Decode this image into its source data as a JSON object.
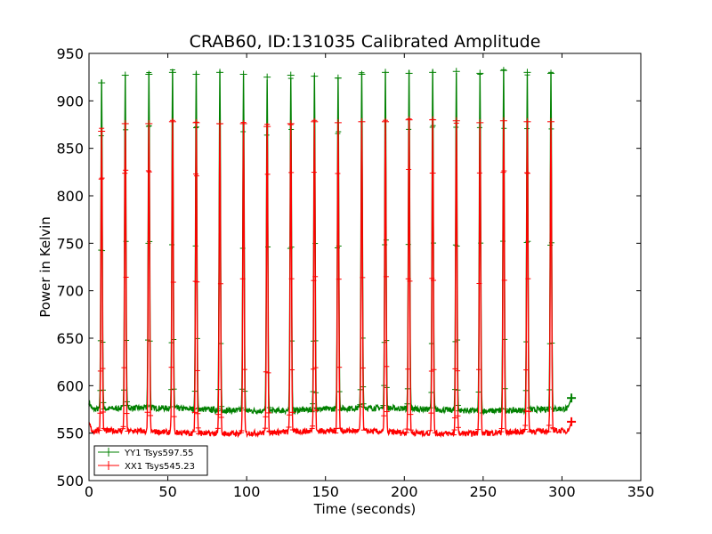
{
  "chart_data": {
    "type": "line",
    "title": "CRAB60, ID:131035 Calibrated Amplitude",
    "xlabel": "Time (seconds)",
    "ylabel": "Power in Kelvin",
    "xlim": [
      0,
      350
    ],
    "ylim": [
      500,
      950
    ],
    "xticks": [
      "0",
      "50",
      "100",
      "150",
      "200",
      "250",
      "300",
      "350"
    ],
    "yticks": [
      "500",
      "550",
      "600",
      "650",
      "700",
      "750",
      "800",
      "850",
      "900",
      "950"
    ],
    "grid": false,
    "legend_position": "lower-left",
    "x_range": [
      0,
      306
    ],
    "pulse_period": 15,
    "pulse_centers": [
      8,
      23,
      38,
      53,
      68,
      83,
      98,
      113,
      128,
      143,
      158,
      173,
      188,
      203,
      218,
      233,
      248,
      263,
      278,
      293
    ],
    "series": [
      {
        "name": "YY1 Tsys597.55",
        "color": "#008000",
        "baseline": 575,
        "end_value": 587,
        "peaks": [
          919,
          927,
          928,
          930,
          928,
          930,
          928,
          925,
          927,
          926,
          924,
          928,
          930,
          929,
          930,
          931,
          929,
          932,
          930,
          929
        ]
      },
      {
        "name": "XX1 Tsys545.23",
        "color": "#ff0000",
        "baseline": 551,
        "end_value": 562,
        "peaks": [
          868,
          876,
          876,
          878,
          877,
          876,
          876,
          873,
          876,
          878,
          877,
          878,
          878,
          880,
          880,
          879,
          877,
          879,
          878,
          878
        ]
      }
    ]
  }
}
